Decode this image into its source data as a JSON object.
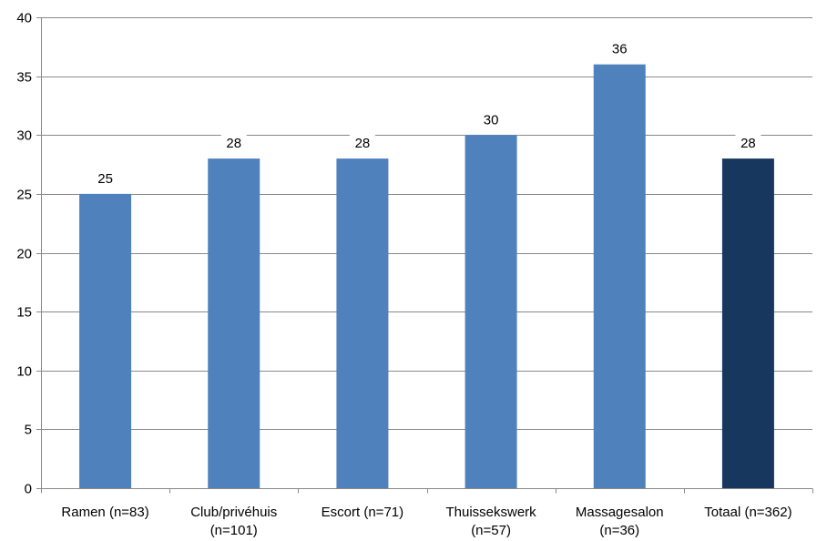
{
  "chart_data": {
    "type": "bar",
    "title": "",
    "xlabel": "",
    "ylabel": "",
    "ylim": [
      0,
      40
    ],
    "yticks": [
      0,
      5,
      10,
      15,
      20,
      25,
      30,
      35,
      40
    ],
    "grid": true,
    "legend": "none",
    "categories": [
      [
        "Ramen (n=83)"
      ],
      [
        "Club/privéhuis",
        "(n=101)"
      ],
      [
        "Escort (n=71)"
      ],
      [
        "Thuissekswerk",
        "(n=57)"
      ],
      [
        "Massagesalon",
        "(n=36)"
      ],
      [
        "Totaal (n=362)"
      ]
    ],
    "values": [
      25,
      28,
      28,
      30,
      36,
      28
    ],
    "colors": [
      "#4F81BD",
      "#4F81BD",
      "#4F81BD",
      "#4F81BD",
      "#4F81BD",
      "#17375E"
    ]
  }
}
